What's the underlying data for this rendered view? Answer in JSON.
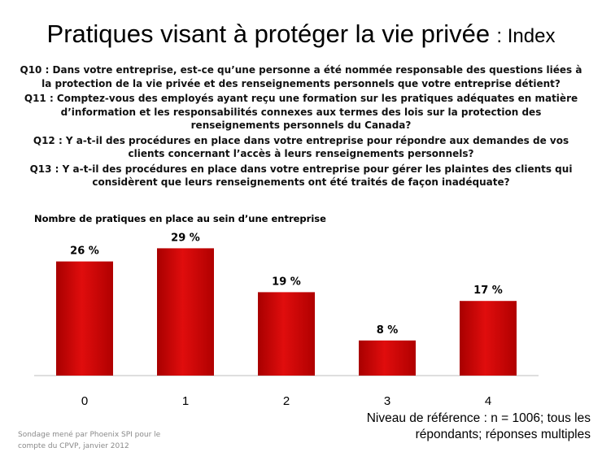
{
  "header": {
    "title_main": "Pratiques visant à protéger la vie privée",
    "title_suffix": ": Index"
  },
  "questions": [
    "Q10 : Dans votre entreprise, est-ce qu’une personne a été nommée responsable des questions liées à la protection de la vie privée et des renseignements personnels que votre entreprise détient?",
    "Q11 : Comptez-vous des employés ayant reçu une formation sur les pratiques adéquates en matière d’information et les responsabilités connexes aux termes des lois sur la protection des renseignements personnels du Canada?",
    "Q12 : Y a-t-il des procédures en place dans votre entreprise pour répondre aux demandes de vos clients concernant l’accès à leurs renseignements personnels?",
    "Q13 : Y a-t-il des procédures en place dans votre entreprise pour gérer les plaintes des clients qui considèrent que leurs renseignements ont été traités de façon inadéquate?"
  ],
  "chart_data": {
    "type": "bar",
    "title": "Nombre de pratiques en place au sein d’une entreprise",
    "categories": [
      "0",
      "1",
      "2",
      "3",
      "4"
    ],
    "values": [
      26,
      29,
      19,
      8,
      17
    ],
    "value_labels": [
      "26 %",
      "29 %",
      "19 %",
      "8 %",
      "17 %"
    ],
    "unit": "%",
    "ylim": [
      0,
      30
    ],
    "xlabel": "",
    "ylabel": "",
    "bar_color": "#cc0000"
  },
  "footer": {
    "source_note": "Sondage mené par Phoenix SPI pour le compte du CPVP, janvier 2012",
    "base_note": "Niveau de référence : n = 1006; tous les répondants; réponses multiples"
  }
}
